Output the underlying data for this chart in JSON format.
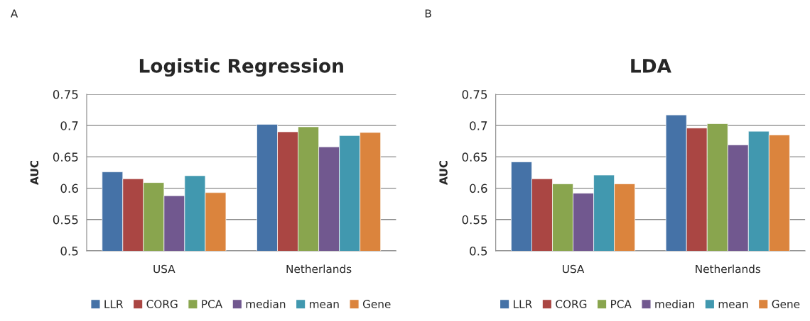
{
  "chart_data": [
    {
      "type": "bar",
      "title": "Logistic Regression",
      "ylabel": "AUC",
      "annotations": [
        "A"
      ],
      "categories": [
        "USA",
        "Netherlands"
      ],
      "ylim": [
        0.5,
        0.75
      ],
      "yticks": [
        0.5,
        0.55,
        0.6,
        0.65,
        0.7,
        0.75
      ],
      "grid": "y",
      "legend": "bottom",
      "series": [
        {
          "name": "LLR",
          "color": "#4572a7",
          "values": [
            0.626,
            0.702
          ]
        },
        {
          "name": "CORG",
          "color": "#aa4643",
          "values": [
            0.615,
            0.69
          ]
        },
        {
          "name": "PCA",
          "color": "#89a54e",
          "values": [
            0.609,
            0.698
          ]
        },
        {
          "name": "median",
          "color": "#71588f",
          "values": [
            0.588,
            0.666
          ]
        },
        {
          "name": "mean",
          "color": "#4198af",
          "values": [
            0.62,
            0.684
          ]
        },
        {
          "name": "Gene",
          "color": "#db843d",
          "values": [
            0.593,
            0.689
          ]
        }
      ]
    },
    {
      "type": "bar",
      "title": "LDA",
      "ylabel": "AUC",
      "annotations": [
        "B"
      ],
      "categories": [
        "USA",
        "Netherlands"
      ],
      "ylim": [
        0.5,
        0.75
      ],
      "yticks": [
        0.5,
        0.55,
        0.6,
        0.65,
        0.7,
        0.75
      ],
      "grid": "y",
      "legend": "bottom",
      "series": [
        {
          "name": "LLR",
          "color": "#4572a7",
          "values": [
            0.642,
            0.717
          ]
        },
        {
          "name": "CORG",
          "color": "#aa4643",
          "values": [
            0.615,
            0.696
          ]
        },
        {
          "name": "PCA",
          "color": "#89a54e",
          "values": [
            0.607,
            0.703
          ]
        },
        {
          "name": "median",
          "color": "#71588f",
          "values": [
            0.592,
            0.669
          ]
        },
        {
          "name": "mean",
          "color": "#4198af",
          "values": [
            0.621,
            0.691
          ]
        },
        {
          "name": "Gene",
          "color": "#db843d",
          "values": [
            0.607,
            0.685
          ]
        }
      ]
    }
  ]
}
